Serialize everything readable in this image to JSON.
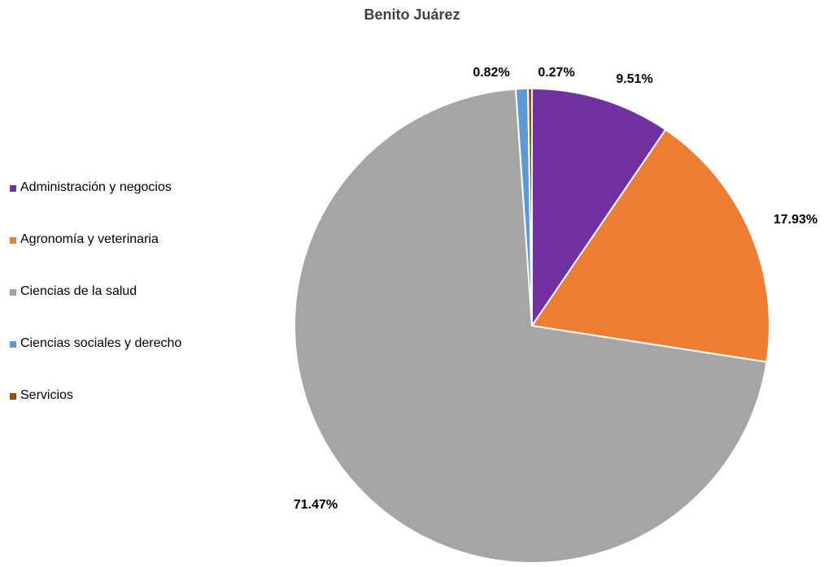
{
  "chart_data": {
    "type": "pie",
    "title": "Benito Juárez",
    "legend_position": "left",
    "categories": [
      "Administración y negocios",
      "Agronomía y veterinaria",
      "Ciencias de la salud",
      "Ciencias sociales y derecho",
      "Servicios"
    ],
    "values": [
      9.51,
      17.93,
      71.47,
      0.82,
      0.27
    ],
    "labels": [
      "9.51%",
      "17.93%",
      "71.47%",
      "0.82%",
      "0.27%"
    ],
    "colors": [
      "#7030a0",
      "#ed7d31",
      "#a5a5a5",
      "#5b9bd5",
      "#9e480e"
    ]
  }
}
